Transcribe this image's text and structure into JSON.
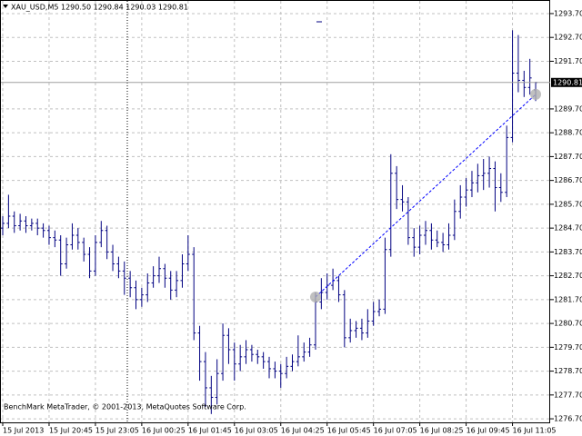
{
  "chart_data": {
    "type": "ohlc",
    "title": "XAU_USD,M5  1290.50 1290.84 1290.03 1290.81",
    "footer": "BenchMark MetaTrader, © 2001-2013, MetaQuotes Software Corp.",
    "color": "#000080",
    "grid": true,
    "ylim": [
      1276.55,
      1294.27
    ],
    "yticks": [
      {
        "value": 1276.7,
        "label": "1276.70"
      },
      {
        "value": 1277.7,
        "label": "1277.70"
      },
      {
        "value": 1278.7,
        "label": "1278.70"
      },
      {
        "value": 1279.7,
        "label": "1279.70"
      },
      {
        "value": 1280.7,
        "label": "1280.70"
      },
      {
        "value": 1281.7,
        "label": "1281.70"
      },
      {
        "value": 1282.7,
        "label": "1282.70"
      },
      {
        "value": 1283.7,
        "label": "1283.70"
      },
      {
        "value": 1284.7,
        "label": "1284.70"
      },
      {
        "value": 1285.7,
        "label": "1285.70"
      },
      {
        "value": 1286.7,
        "label": "1286.70"
      },
      {
        "value": 1287.7,
        "label": "1287.70"
      },
      {
        "value": 1288.7,
        "label": "1288.70"
      },
      {
        "value": 1289.7,
        "label": "1289.70"
      },
      {
        "value": 1291.7,
        "label": "1291.70"
      },
      {
        "value": 1292.7,
        "label": "1292.70"
      },
      {
        "value": 1293.7,
        "label": "1293.70"
      }
    ],
    "current_price": 1290.81,
    "trendline": {
      "from": {
        "index": 54,
        "value": 1281.81
      },
      "to": {
        "index": 92,
        "value": 1290.31
      }
    },
    "categories": [
      "15 Jul 2013",
      null,
      null,
      null,
      null,
      null,
      null,
      null,
      "15 Jul 20:45",
      null,
      null,
      null,
      null,
      null,
      null,
      null,
      "15 Jul 23:05",
      null,
      null,
      null,
      null,
      null,
      null,
      null,
      "16 Jul 00:25",
      null,
      null,
      null,
      null,
      null,
      null,
      null,
      "16 Jul 01:45",
      null,
      null,
      null,
      null,
      null,
      null,
      null,
      "16 Jul 03:05",
      null,
      null,
      null,
      null,
      null,
      null,
      null,
      "16 Jul 04:25",
      null,
      null,
      null,
      null,
      null,
      null,
      null,
      "16 Jul 05:45",
      null,
      null,
      null,
      null,
      null,
      null,
      null,
      "16 Jul 07:05",
      null,
      null,
      null,
      null,
      null,
      null,
      null,
      "16 Jul 08:25",
      null,
      null,
      null,
      null,
      null,
      null,
      null,
      "16 Jul 09:45",
      null,
      null,
      null,
      null,
      null,
      null,
      null,
      "16 Jul 11:05",
      null,
      null,
      null,
      null
    ],
    "ohlc": [
      [
        1284.7,
        1285.2,
        1284.4,
        1284.9
      ],
      [
        1284.9,
        1286.1,
        1284.7,
        1285.2
      ],
      [
        1285.2,
        1285.4,
        1284.5,
        1284.8
      ],
      [
        1284.8,
        1285.3,
        1284.6,
        1285.0
      ],
      [
        1285.0,
        1285.2,
        1284.5,
        1284.8
      ],
      [
        1284.8,
        1285.1,
        1284.6,
        1284.9
      ],
      [
        1284.9,
        1285.1,
        1284.4,
        1284.7
      ],
      [
        1284.7,
        1284.9,
        1284.3,
        1284.6
      ],
      [
        1284.6,
        1284.8,
        1284.0,
        1284.3
      ],
      [
        1284.3,
        1284.6,
        1283.9,
        1284.2
      ],
      [
        1284.2,
        1284.4,
        1282.7,
        1283.2
      ],
      [
        1283.2,
        1284.3,
        1283.0,
        1284.0
      ],
      [
        1284.0,
        1284.9,
        1283.8,
        1284.4
      ],
      [
        1284.4,
        1284.7,
        1283.8,
        1284.1
      ],
      [
        1284.1,
        1284.3,
        1283.3,
        1283.6
      ],
      [
        1283.6,
        1283.9,
        1282.6,
        1282.9
      ],
      [
        1282.9,
        1284.4,
        1282.7,
        1284.1
      ],
      [
        1284.1,
        1285.0,
        1283.9,
        1284.6
      ],
      [
        1284.6,
        1284.8,
        1283.4,
        1283.7
      ],
      [
        1283.7,
        1284.0,
        1282.9,
        1283.2
      ],
      [
        1283.2,
        1283.5,
        1282.6,
        1282.9
      ],
      [
        1282.9,
        1283.3,
        1281.9,
        1282.6
      ],
      [
        1282.6,
        1282.9,
        1281.8,
        1282.2
      ],
      [
        1282.2,
        1282.5,
        1281.3,
        1281.7
      ],
      [
        1281.7,
        1282.2,
        1281.4,
        1281.9
      ],
      [
        1281.9,
        1282.8,
        1281.6,
        1282.4
      ],
      [
        1282.4,
        1283.1,
        1282.2,
        1282.7
      ],
      [
        1282.7,
        1283.5,
        1282.4,
        1283.0
      ],
      [
        1283.0,
        1283.2,
        1282.2,
        1282.6
      ],
      [
        1282.6,
        1282.9,
        1281.7,
        1282.1
      ],
      [
        1282.1,
        1282.9,
        1281.8,
        1282.5
      ],
      [
        1282.5,
        1283.6,
        1282.2,
        1283.2
      ],
      [
        1283.2,
        1284.4,
        1282.9,
        1283.6
      ],
      [
        1283.6,
        1283.9,
        1280.0,
        1280.3
      ],
      [
        1280.3,
        1280.6,
        1278.3,
        1279.1
      ],
      [
        1279.1,
        1279.5,
        1277.2,
        1278.0
      ],
      [
        1278.0,
        1278.5,
        1276.9,
        1277.6
      ],
      [
        1277.6,
        1279.2,
        1277.3,
        1278.6
      ],
      [
        1278.6,
        1280.7,
        1278.3,
        1280.2
      ],
      [
        1280.2,
        1280.5,
        1279.0,
        1279.6
      ],
      [
        1279.6,
        1279.9,
        1278.3,
        1279.0
      ],
      [
        1279.0,
        1279.8,
        1278.7,
        1279.3
      ],
      [
        1279.3,
        1280.0,
        1279.0,
        1279.6
      ],
      [
        1279.6,
        1279.8,
        1279.1,
        1279.4
      ],
      [
        1279.4,
        1279.6,
        1279.0,
        1279.3
      ],
      [
        1279.3,
        1279.5,
        1278.8,
        1279.1
      ],
      [
        1279.1,
        1279.3,
        1278.4,
        1278.8
      ],
      [
        1278.8,
        1279.1,
        1278.4,
        1278.7
      ],
      [
        1278.7,
        1279.0,
        1278.0,
        1278.6
      ],
      [
        1278.6,
        1279.3,
        1278.4,
        1278.9
      ],
      [
        1278.9,
        1279.4,
        1278.7,
        1279.1
      ],
      [
        1279.1,
        1280.2,
        1278.9,
        1279.3
      ],
      [
        1279.3,
        1279.9,
        1279.1,
        1279.5
      ],
      [
        1279.5,
        1280.1,
        1279.3,
        1279.8
      ],
      [
        1279.8,
        1282.0,
        1279.6,
        1281.6
      ],
      [
        1281.6,
        1282.6,
        1281.3,
        1282.0
      ],
      [
        1282.0,
        1282.8,
        1281.7,
        1282.3
      ],
      [
        1282.3,
        1283.0,
        1282.1,
        1282.5
      ],
      [
        1282.5,
        1282.7,
        1281.6,
        1281.9
      ],
      [
        1281.9,
        1282.1,
        1279.7,
        1280.1
      ],
      [
        1280.1,
        1280.9,
        1279.9,
        1280.4
      ],
      [
        1280.4,
        1280.8,
        1280.1,
        1280.5
      ],
      [
        1280.5,
        1280.9,
        1280.0,
        1280.3
      ],
      [
        1280.3,
        1281.3,
        1280.1,
        1280.8
      ],
      [
        1280.8,
        1281.6,
        1280.6,
        1281.2
      ],
      [
        1281.2,
        1281.7,
        1281.0,
        1281.3
      ],
      [
        1281.3,
        1284.3,
        1281.1,
        1283.8
      ],
      [
        1283.8,
        1287.8,
        1283.5,
        1287.0
      ],
      [
        1287.0,
        1287.3,
        1285.5,
        1285.9
      ],
      [
        1285.9,
        1286.5,
        1285.4,
        1285.8
      ],
      [
        1285.8,
        1286.0,
        1284.0,
        1284.3
      ],
      [
        1284.3,
        1284.7,
        1283.5,
        1283.9
      ],
      [
        1283.9,
        1284.8,
        1283.6,
        1284.4
      ],
      [
        1284.4,
        1285.0,
        1284.0,
        1284.6
      ],
      [
        1284.6,
        1284.9,
        1283.8,
        1284.2
      ],
      [
        1284.2,
        1284.6,
        1283.9,
        1284.1
      ],
      [
        1284.1,
        1284.5,
        1283.7,
        1284.0
      ],
      [
        1284.0,
        1284.9,
        1283.8,
        1284.4
      ],
      [
        1284.4,
        1285.9,
        1284.2,
        1285.4
      ],
      [
        1285.4,
        1286.5,
        1285.1,
        1286.0
      ],
      [
        1286.0,
        1286.8,
        1285.6,
        1286.3
      ],
      [
        1286.3,
        1287.1,
        1286.0,
        1286.6
      ],
      [
        1286.6,
        1287.4,
        1286.2,
        1286.9
      ],
      [
        1286.9,
        1287.6,
        1286.3,
        1287.0
      ],
      [
        1287.0,
        1287.7,
        1286.4,
        1287.2
      ],
      [
        1287.2,
        1287.5,
        1285.4,
        1286.4
      ],
      [
        1286.4,
        1287.0,
        1285.8,
        1286.2
      ],
      [
        1286.2,
        1289.0,
        1286.0,
        1288.5
      ],
      [
        1288.5,
        1293.0,
        1288.3,
        1291.2
      ],
      [
        1291.2,
        1292.8,
        1290.4,
        1290.9
      ],
      [
        1290.9,
        1291.3,
        1290.2,
        1290.6
      ],
      [
        1290.6,
        1291.8,
        1290.3,
        1291.0
      ],
      [
        1290.5,
        1290.84,
        1290.03,
        1290.81
      ]
    ]
  }
}
